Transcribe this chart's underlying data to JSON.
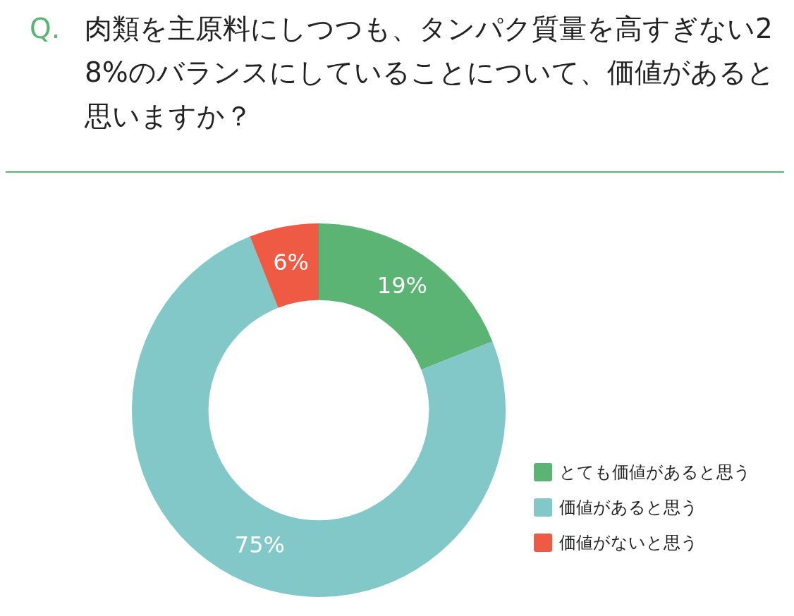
{
  "chart_data": {
    "type": "donut",
    "title": "Q. 肉類を主原料にしつつも、タンパク質量を高すぎない28%のバランスにしていることについて、価値があると思いますか？",
    "categories": [
      "とても価値があると思う",
      "価値があると思う",
      "価値がないと思う"
    ],
    "values": [
      19,
      75,
      6
    ],
    "colors": [
      "#5bb474",
      "#82c8c9",
      "#ee5a44"
    ],
    "value_labels": [
      "19%",
      "75%",
      "6%"
    ],
    "legend": "bottom right"
  }
}
